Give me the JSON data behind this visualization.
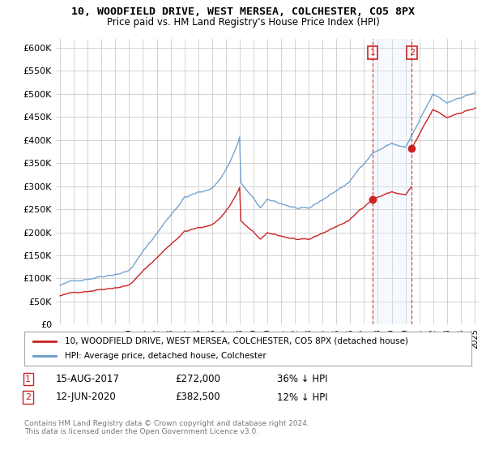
{
  "title": "10, WOODFIELD DRIVE, WEST MERSEA, COLCHESTER, CO5 8PX",
  "subtitle": "Price paid vs. HM Land Registry's House Price Index (HPI)",
  "hpi_label": "HPI: Average price, detached house, Colchester",
  "price_label": "10, WOODFIELD DRIVE, WEST MERSEA, COLCHESTER, CO5 8PX (detached house)",
  "footnote": "Contains HM Land Registry data © Crown copyright and database right 2024.\nThis data is licensed under the Open Government Licence v3.0.",
  "transaction1": {
    "label": "1",
    "date": "15-AUG-2017",
    "price": "£272,000",
    "hpi": "36% ↓ HPI"
  },
  "transaction2": {
    "label": "2",
    "date": "12-JUN-2020",
    "price": "£382,500",
    "hpi": "12% ↓ HPI"
  },
  "hpi_color": "#6699cc",
  "price_color": "#cc2222",
  "vline_color": "#cc2222",
  "shade_color": "#ddeeff",
  "ylim": [
    0,
    620000
  ],
  "yticks": [
    0,
    50000,
    100000,
    150000,
    200000,
    250000,
    300000,
    350000,
    400000,
    450000,
    500000,
    550000,
    600000
  ],
  "background_color": "#ffffff",
  "grid_color": "#cccccc",
  "t1_year": 2017.62,
  "t2_year": 2020.45,
  "t1_price": 272000,
  "t2_price": 382500
}
